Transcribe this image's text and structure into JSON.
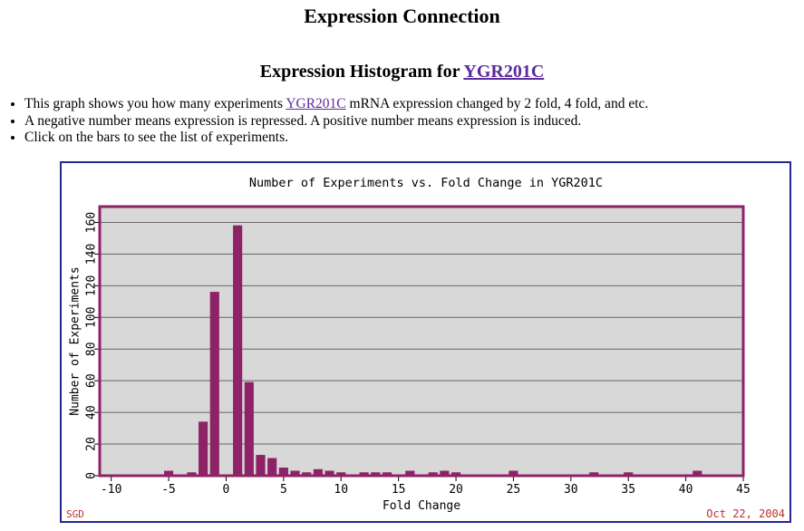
{
  "page": {
    "title": "Expression Connection",
    "heading_prefix": "Expression Histogram for",
    "gene": "YGR201C"
  },
  "bullets": {
    "b1_pre": "This graph shows you how many experiments",
    "b1_link": "YGR201C",
    "b1_post": "mRNA expression changed by 2 fold, 4 fold, and etc.",
    "b2": "A negative number means expression is repressed. A positive number means expression is induced.",
    "b3": "Click on the bars to see the list of experiments."
  },
  "chart_data": {
    "type": "bar",
    "title": "Number of Experiments vs. Fold Change in YGR201C",
    "xlabel": "Fold Change",
    "ylabel": "Number of Experiments",
    "xlim": [
      -11,
      45
    ],
    "ylim": [
      0,
      170
    ],
    "x_ticks": [
      -10,
      -5,
      0,
      5,
      10,
      15,
      20,
      25,
      30,
      35,
      40,
      45
    ],
    "y_ticks": [
      0,
      20,
      40,
      60,
      80,
      100,
      120,
      140,
      160
    ],
    "grid": "horizontal-only",
    "legend": "none",
    "bar_width": 0.8,
    "x": [
      -5,
      -3,
      -2,
      -1,
      1,
      2,
      3,
      4,
      5,
      6,
      7,
      8,
      9,
      10,
      12,
      13,
      14,
      16,
      18,
      19,
      20,
      25,
      32,
      35,
      41
    ],
    "values": [
      2,
      1,
      33,
      115,
      157,
      58,
      12,
      10,
      4,
      2,
      1,
      3,
      2,
      1,
      1,
      1,
      1,
      2,
      1,
      2,
      1,
      2,
      1,
      1,
      2
    ]
  },
  "footer": {
    "credit": "SGD",
    "date": "Oct 22, 2004"
  },
  "colors": {
    "bar": "#8E2266",
    "frame": "#8E2266",
    "plot_background": "#D8D8D8",
    "gridline": "#666666",
    "box_border": "#26268C",
    "annotation_red": "#C03030",
    "link_purple": "#5A2B9F",
    "text": "#000000"
  }
}
